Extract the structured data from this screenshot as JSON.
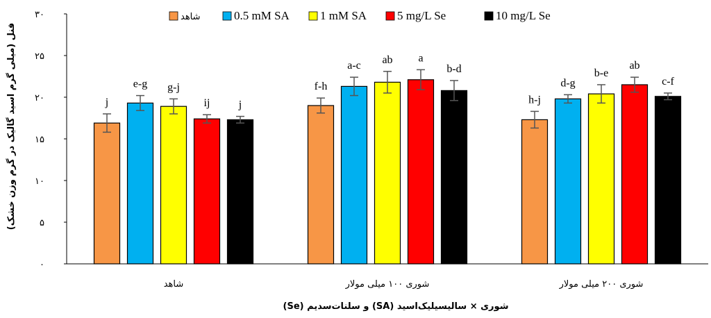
{
  "chart_data": {
    "type": "bar",
    "xlabel": "شوری × سالیسیلیک‌اسید (SA) و سلنات‌سدیم (Se)",
    "ylabel": "فنل (میلی گرم اسید گالیک در گرم وزن خشک)",
    "ylim": [
      0,
      30
    ],
    "yticks": [
      0,
      5,
      10,
      15,
      20,
      25,
      30
    ],
    "ytick_labels": [
      "۰",
      "۵",
      "۱۰",
      "۱۵",
      "۲۰",
      "۲۵",
      "۳۰"
    ],
    "grid": false,
    "legend_position": "top",
    "categories": [
      "شاهد",
      "شوری ۱۰۰ میلی مولار",
      "شوری ۲۰۰ میلی مولار"
    ],
    "series": [
      {
        "name": "شاهد",
        "color": "#F79646",
        "values": [
          16.9,
          19.0,
          17.3
        ],
        "errors": [
          1.1,
          0.9,
          1.0
        ],
        "letters": [
          "j",
          "f-h",
          "h-j"
        ]
      },
      {
        "name": "0.5 mM SA",
        "color": "#00B0F0",
        "values": [
          19.3,
          21.3,
          19.8
        ],
        "errors": [
          0.9,
          1.1,
          0.5
        ],
        "letters": [
          "e-g",
          "a-c",
          "d-g"
        ]
      },
      {
        "name": "1 mM SA",
        "color": "#FFFF00",
        "values": [
          18.9,
          21.8,
          20.4
        ],
        "errors": [
          0.9,
          1.3,
          1.1
        ],
        "letters": [
          "g-j",
          "ab",
          "b-e"
        ]
      },
      {
        "name": "5 mg/L Se",
        "color": "#FF0000",
        "values": [
          17.4,
          22.1,
          21.5
        ],
        "errors": [
          0.5,
          1.2,
          0.9
        ],
        "letters": [
          "ij",
          "a",
          "ab"
        ]
      },
      {
        "name": "10 mg/L Se",
        "color": "#000000",
        "values": [
          17.3,
          20.8,
          20.1
        ],
        "errors": [
          0.4,
          1.2,
          0.4
        ],
        "letters": [
          "j",
          "b-d",
          "c-f"
        ]
      }
    ]
  }
}
